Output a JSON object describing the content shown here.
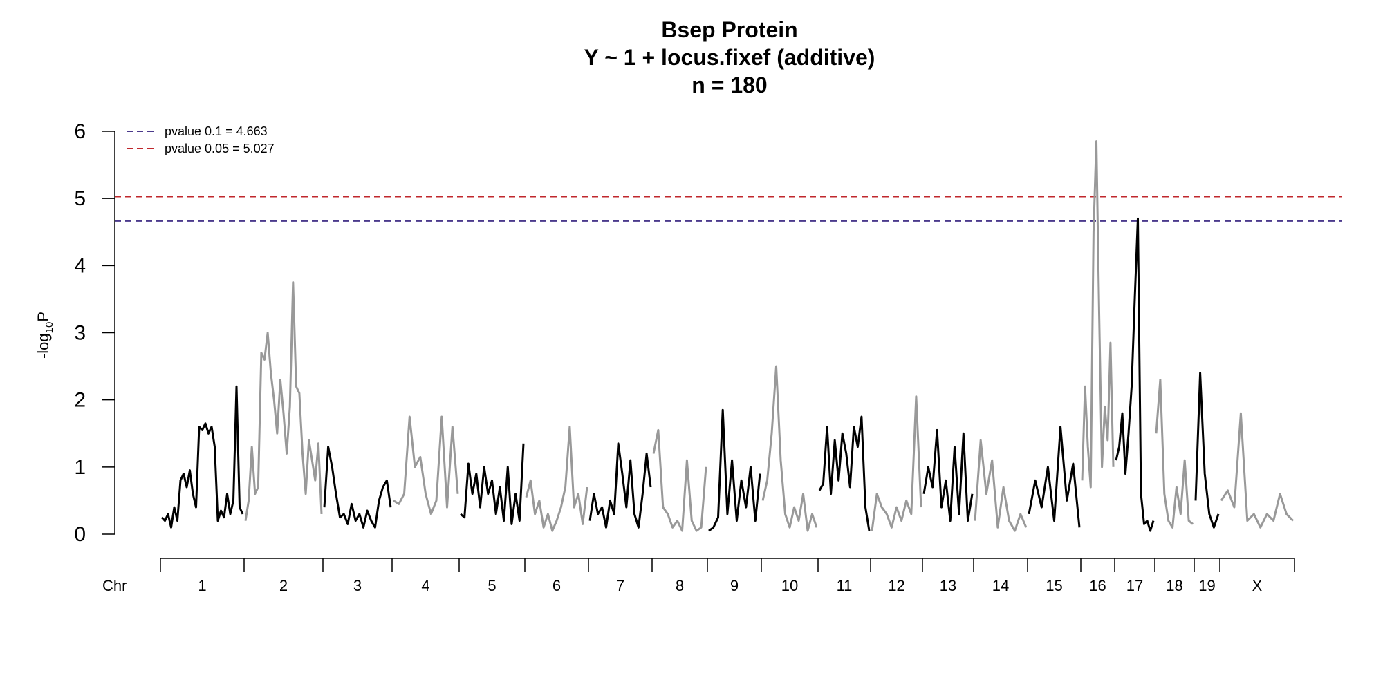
{
  "chart_data": {
    "type": "line",
    "title": "Bsep Protein",
    "subtitle": "Y ~ 1 + locus.fixef (additive)",
    "sample_size": "n = 180",
    "ylabel": {
      "prefix": "-log",
      "subscript": "10",
      "suffix": "P"
    },
    "ylim": [
      0,
      6
    ],
    "y_ticks": [
      "0",
      "1",
      "2",
      "3",
      "4",
      "5",
      "6"
    ],
    "x_axis_label": "Chr",
    "thresholds": [
      {
        "label": "pvalue 0.1 = 4.663",
        "value": 4.663,
        "color": "#4b3a8c"
      },
      {
        "label": "pvalue 0.05 = 5.027",
        "value": 5.027,
        "color": "#c0282d"
      }
    ],
    "colors": {
      "odd": "#000000",
      "even": "#999999"
    },
    "chromosomes": [
      {
        "name": "1",
        "values": [
          0.25,
          0.2,
          0.3,
          0.1,
          0.4,
          0.2,
          0.8,
          0.9,
          0.7,
          0.95,
          0.6,
          0.4,
          1.6,
          1.55,
          1.65,
          1.5,
          1.6,
          1.3,
          0.2,
          0.35,
          0.25,
          0.6,
          0.3,
          0.5,
          2.2,
          0.4,
          0.3
        ]
      },
      {
        "name": "2",
        "values": [
          0.2,
          0.5,
          1.3,
          0.6,
          0.7,
          2.7,
          2.6,
          3.0,
          2.4,
          2.0,
          1.5,
          2.3,
          1.8,
          1.2,
          1.9,
          3.75,
          2.2,
          2.1,
          1.2,
          0.6,
          1.4,
          1.1,
          0.8,
          1.35,
          0.3
        ]
      },
      {
        "name": "3",
        "values": [
          0.4,
          1.3,
          1.0,
          0.6,
          0.25,
          0.3,
          0.15,
          0.45,
          0.2,
          0.3,
          0.1,
          0.35,
          0.2,
          0.1,
          0.5,
          0.7,
          0.8,
          0.4
        ]
      },
      {
        "name": "4",
        "values": [
          0.5,
          0.45,
          0.6,
          1.75,
          1.0,
          1.15,
          0.6,
          0.3,
          0.5,
          1.75,
          0.4,
          1.6,
          0.6
        ]
      },
      {
        "name": "5",
        "values": [
          0.3,
          0.25,
          1.05,
          0.6,
          0.9,
          0.4,
          1.0,
          0.6,
          0.8,
          0.3,
          0.7,
          0.2,
          1.0,
          0.15,
          0.6,
          0.2,
          1.35
        ]
      },
      {
        "name": "6",
        "values": [
          0.55,
          0.8,
          0.3,
          0.5,
          0.1,
          0.3,
          0.05,
          0.2,
          0.4,
          0.7,
          1.6,
          0.4,
          0.6,
          0.15,
          0.7
        ]
      },
      {
        "name": "7",
        "values": [
          0.2,
          0.6,
          0.3,
          0.4,
          0.1,
          0.5,
          0.3,
          1.35,
          0.9,
          0.4,
          1.1,
          0.3,
          0.1,
          0.6,
          1.2,
          0.7
        ]
      },
      {
        "name": "8",
        "values": [
          1.2,
          1.55,
          0.4,
          0.3,
          0.1,
          0.2,
          0.05,
          1.1,
          0.2,
          0.05,
          0.1,
          1.0
        ]
      },
      {
        "name": "9",
        "values": [
          0.05,
          0.1,
          0.25,
          1.85,
          0.3,
          1.1,
          0.2,
          0.8,
          0.4,
          1.0,
          0.2,
          0.9
        ]
      },
      {
        "name": "10",
        "values": [
          0.5,
          0.8,
          1.5,
          2.5,
          1.1,
          0.3,
          0.1,
          0.4,
          0.2,
          0.6,
          0.05,
          0.3,
          0.1
        ]
      },
      {
        "name": "11",
        "values": [
          0.65,
          0.75,
          1.6,
          0.6,
          1.4,
          0.8,
          1.5,
          1.2,
          0.7,
          1.6,
          1.3,
          1.75,
          0.4,
          0.05
        ]
      },
      {
        "name": "12",
        "values": [
          0.05,
          0.6,
          0.4,
          0.3,
          0.1,
          0.4,
          0.2,
          0.5,
          0.3,
          2.05,
          0.4
        ]
      },
      {
        "name": "13",
        "values": [
          0.6,
          1.0,
          0.7,
          1.55,
          0.4,
          0.8,
          0.2,
          1.3,
          0.3,
          1.5,
          0.2,
          0.6
        ]
      },
      {
        "name": "14",
        "values": [
          0.2,
          1.4,
          0.6,
          1.1,
          0.1,
          0.7,
          0.2,
          0.05,
          0.3,
          0.1
        ]
      },
      {
        "name": "15",
        "values": [
          0.3,
          0.8,
          0.4,
          1.0,
          0.2,
          1.6,
          0.5,
          1.05,
          0.1
        ]
      },
      {
        "name": "16",
        "values": [
          0.8,
          2.2,
          1.3,
          0.7,
          4.5,
          5.85,
          3.3,
          1.0,
          1.9,
          1.4,
          2.85,
          1.0
        ]
      },
      {
        "name": "17",
        "values": [
          1.1,
          1.3,
          1.8,
          0.9,
          1.5,
          2.2,
          3.5,
          4.7,
          0.6,
          0.15,
          0.2,
          0.05,
          0.2
        ]
      },
      {
        "name": "18",
        "values": [
          1.5,
          2.3,
          0.6,
          0.2,
          0.1,
          0.7,
          0.3,
          1.1,
          0.2,
          0.15
        ]
      },
      {
        "name": "19",
        "values": [
          0.5,
          2.4,
          0.9,
          0.3,
          0.1,
          0.3
        ]
      },
      {
        "name": "X",
        "values": [
          0.5,
          0.65,
          0.4,
          1.8,
          0.2,
          0.3,
          0.1,
          0.3,
          0.2,
          0.6,
          0.3,
          0.2
        ]
      }
    ]
  }
}
